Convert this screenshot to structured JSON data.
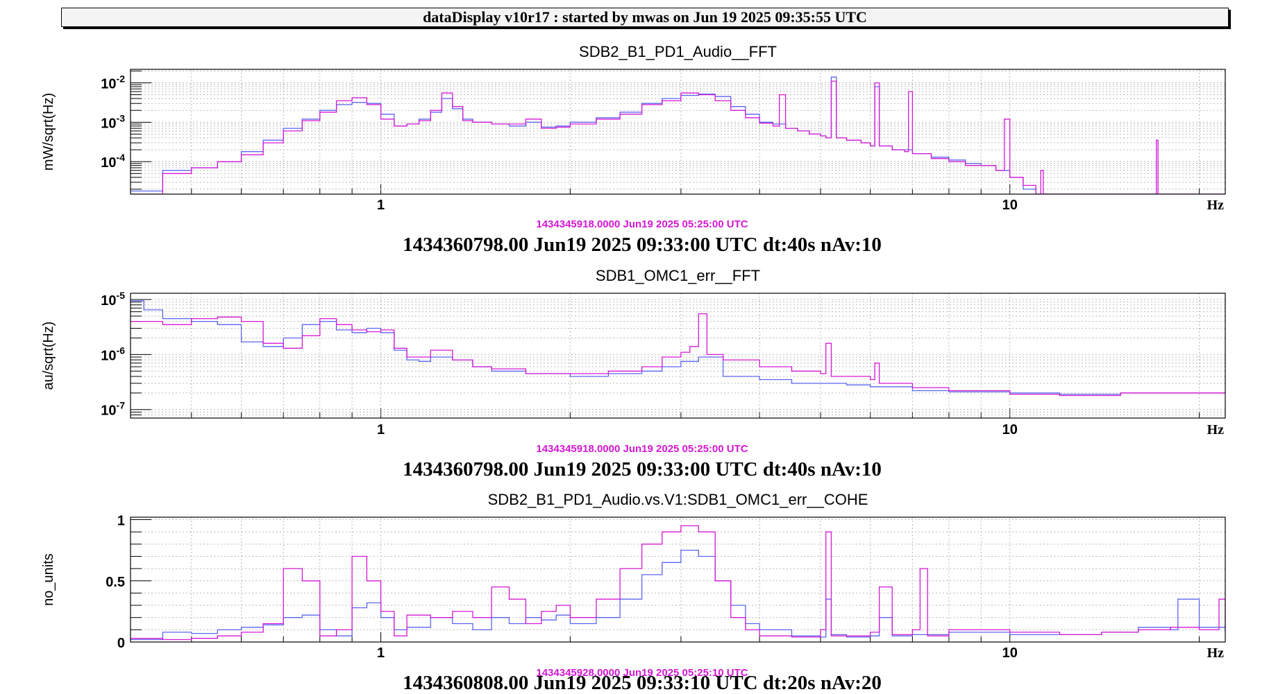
{
  "banner": "dataDisplay v10r17 : started by mwas on Jun 19 2025 09:35:55 UTC",
  "colors": {
    "series_ref": "#5a64ee",
    "series_live": "#d417d4",
    "magenta_text": "#d417d4",
    "grid": "#b8b8b8"
  },
  "chart_data": [
    {
      "type": "line",
      "title": "SDB2_B1_PD1_Audio__FFT",
      "ylabel": "mW/sqrt(Hz)",
      "xunit": "Hz",
      "xscale": "log",
      "yscale": "log",
      "grid": true,
      "xlim": [
        0.4,
        22
      ],
      "ylim": [
        1.5e-05,
        0.022
      ],
      "xticks": [
        {
          "v": 1,
          "label": "1"
        },
        {
          "v": 10,
          "label": "10"
        }
      ],
      "yticks": [
        {
          "v": 0.01,
          "base": "10",
          "exp": "-2"
        },
        {
          "v": 0.001,
          "base": "10",
          "exp": "-3"
        },
        {
          "v": 0.0001,
          "base": "10",
          "exp": "-4"
        }
      ],
      "ref_time": "1434345918.0000 Jun19 2025 05:25:00 UTC",
      "time_label": "1434360798.00 Jun19 2025 09:33:00 UTC dt:40s nAv:10",
      "series": [
        {
          "color": "#5a64ee",
          "x": [
            0.4,
            0.45,
            0.5,
            0.55,
            0.6,
            0.65,
            0.7,
            0.75,
            0.8,
            0.85,
            0.9,
            0.95,
            1.0,
            1.05,
            1.1,
            1.15,
            1.2,
            1.25,
            1.3,
            1.35,
            1.4,
            1.5,
            1.6,
            1.7,
            1.8,
            1.9,
            2.0,
            2.2,
            2.4,
            2.6,
            2.8,
            3.0,
            3.2,
            3.4,
            3.6,
            3.8,
            4.0,
            4.2,
            4.4,
            4.6,
            4.8,
            5.0,
            5.1,
            5.2,
            5.3,
            5.5,
            5.8,
            6.0,
            6.1,
            6.2,
            6.5,
            7.0,
            7.5,
            8.0,
            8.5,
            9.0,
            9.5,
            10.0,
            10.5,
            11.0,
            11.2,
            11.5,
            12.0,
            13,
            14,
            16,
            18,
            20,
            22
          ],
          "y": [
            1.8e-05,
            6e-05,
            7e-05,
            0.0001,
            0.00018,
            0.00035,
            0.0007,
            0.0012,
            0.002,
            0.0028,
            0.0032,
            0.003,
            0.0016,
            0.0008,
            0.0009,
            0.0012,
            0.0018,
            0.004,
            0.0022,
            0.0012,
            0.001,
            0.0009,
            0.0008,
            0.001,
            0.00075,
            0.0008,
            0.001,
            0.0013,
            0.0018,
            0.003,
            0.004,
            0.0048,
            0.0052,
            0.0045,
            0.0025,
            0.0016,
            0.001,
            0.0009,
            0.0007,
            0.0006,
            0.0005,
            0.00045,
            0.0004,
            0.014,
            0.0004,
            0.00035,
            0.0003,
            0.00025,
            0.008,
            0.00025,
            0.0002,
            0.00016,
            0.00013,
            0.00011,
            9e-05,
            8e-05,
            6e-05,
            4e-05,
            2e-05,
            1.5e-05,
            1.5e-05,
            1.5e-05,
            1.5e-05,
            1.5e-05,
            1.5e-05,
            1.5e-05,
            1.5e-05,
            1.5e-05,
            1.5e-05
          ]
        },
        {
          "color": "#d417d4",
          "x": [
            0.4,
            0.45,
            0.5,
            0.55,
            0.6,
            0.65,
            0.7,
            0.75,
            0.8,
            0.85,
            0.9,
            0.95,
            1.0,
            1.05,
            1.1,
            1.15,
            1.2,
            1.25,
            1.3,
            1.35,
            1.4,
            1.5,
            1.6,
            1.7,
            1.8,
            1.9,
            2.0,
            2.2,
            2.4,
            2.6,
            2.8,
            3.0,
            3.2,
            3.4,
            3.6,
            3.8,
            4.0,
            4.2,
            4.3,
            4.4,
            4.6,
            4.8,
            5.0,
            5.1,
            5.2,
            5.3,
            5.5,
            5.8,
            6.0,
            6.1,
            6.2,
            6.5,
            6.8,
            6.9,
            7.0,
            7.5,
            8.0,
            8.5,
            9.0,
            9.5,
            9.8,
            10.0,
            10.5,
            11.0,
            11.2,
            11.3,
            12.0,
            14,
            17,
            17.1,
            17.2,
            20,
            22
          ],
          "y": [
            1.5e-05,
            5e-05,
            7e-05,
            0.0001,
            0.00015,
            0.0003,
            0.0006,
            0.0011,
            0.0018,
            0.0035,
            0.0042,
            0.0028,
            0.0012,
            0.0008,
            0.0009,
            0.0011,
            0.002,
            0.0055,
            0.0025,
            0.0011,
            0.001,
            0.0009,
            0.0009,
            0.0012,
            0.0007,
            0.00075,
            0.0009,
            0.0012,
            0.0016,
            0.0028,
            0.0035,
            0.0055,
            0.005,
            0.0035,
            0.002,
            0.0013,
            0.00095,
            0.0008,
            0.005,
            0.0007,
            0.0006,
            0.0005,
            0.00045,
            0.0004,
            0.011,
            0.0004,
            0.00035,
            0.0003,
            0.00025,
            0.01,
            0.00025,
            0.0002,
            0.00018,
            0.006,
            0.00016,
            0.00012,
            0.0001,
            8e-05,
            8e-05,
            6e-05,
            0.0012,
            4e-05,
            2.5e-05,
            1.5e-05,
            6e-05,
            1.5e-05,
            1.5e-05,
            1.5e-05,
            1.5e-05,
            0.00035,
            1.5e-05,
            1.5e-05,
            1.5e-05
          ]
        }
      ]
    },
    {
      "type": "line",
      "title": "SDB1_OMC1_err__FFT",
      "ylabel": "au/sqrt(Hz)",
      "xunit": "Hz",
      "xscale": "log",
      "yscale": "log",
      "grid": true,
      "xlim": [
        0.4,
        22
      ],
      "ylim": [
        7e-08,
        1.3e-05
      ],
      "xticks": [
        {
          "v": 1,
          "label": "1"
        },
        {
          "v": 10,
          "label": "10"
        }
      ],
      "yticks": [
        {
          "v": 1e-05,
          "base": "10",
          "exp": "-5"
        },
        {
          "v": 1e-06,
          "base": "10",
          "exp": "-6"
        },
        {
          "v": 1e-07,
          "base": "10",
          "exp": "-7"
        }
      ],
      "ref_time": "1434345918.0000 Jun19 2025 05:25:00 UTC",
      "time_label": "1434360798.00 Jun19 2025 09:33:00 UTC dt:40s nAv:10",
      "series": [
        {
          "color": "#5a64ee",
          "x": [
            0.4,
            0.42,
            0.45,
            0.5,
            0.55,
            0.6,
            0.65,
            0.7,
            0.75,
            0.8,
            0.85,
            0.9,
            0.95,
            1.0,
            1.05,
            1.1,
            1.15,
            1.2,
            1.3,
            1.4,
            1.5,
            1.7,
            2.0,
            2.3,
            2.6,
            2.8,
            3.0,
            3.2,
            3.5,
            4.0,
            4.5,
            5.0,
            5.5,
            6.0,
            7.0,
            8.0,
            10,
            12,
            15,
            18,
            22
          ],
          "y": [
            9.5e-06,
            6.5e-06,
            4.5e-06,
            4e-06,
            3.5e-06,
            1.7e-06,
            1.4e-06,
            2e-06,
            3.5e-06,
            4e-06,
            2.8e-06,
            2.5e-06,
            3e-06,
            2.5e-06,
            1.2e-06,
            8e-07,
            7.5e-07,
            9e-07,
            8e-07,
            6e-07,
            5e-07,
            4.5e-07,
            4e-07,
            4.5e-07,
            5e-07,
            6e-07,
            7.5e-07,
            9e-07,
            4e-07,
            3.5e-07,
            3e-07,
            3e-07,
            2.8e-07,
            2.6e-07,
            2.2e-07,
            2.1e-07,
            2e-07,
            1.9e-07,
            2e-07,
            2e-07,
            2e-07
          ]
        },
        {
          "color": "#d417d4",
          "x": [
            0.4,
            0.45,
            0.5,
            0.55,
            0.6,
            0.65,
            0.7,
            0.75,
            0.8,
            0.85,
            0.9,
            0.95,
            1.0,
            1.05,
            1.1,
            1.2,
            1.3,
            1.4,
            1.5,
            1.7,
            2.0,
            2.3,
            2.6,
            2.8,
            3.0,
            3.1,
            3.2,
            3.3,
            3.5,
            4.0,
            4.5,
            5.0,
            5.1,
            5.2,
            5.5,
            6.0,
            6.1,
            6.2,
            7.0,
            8.0,
            10,
            12,
            15,
            18,
            22
          ],
          "y": [
            4e-06,
            3.5e-06,
            4.5e-06,
            4.8e-06,
            4e-06,
            1.6e-06,
            1.3e-06,
            2.2e-06,
            4.5e-06,
            3.5e-06,
            2.8e-06,
            2.6e-06,
            2.8e-06,
            1.3e-06,
            9e-07,
            1.2e-06,
            8e-07,
            6e-07,
            5.5e-07,
            4.5e-07,
            4.5e-07,
            5e-07,
            6e-07,
            9e-07,
            1.1e-06,
            1.4e-06,
            5.5e-06,
            1e-06,
            8e-07,
            6e-07,
            5e-07,
            4.5e-07,
            1.6e-06,
            4e-07,
            4e-07,
            3.5e-07,
            7e-07,
            3e-07,
            2.5e-07,
            2.2e-07,
            1.9e-07,
            1.8e-07,
            2e-07,
            2e-07,
            1.9e-07
          ]
        }
      ]
    },
    {
      "type": "line",
      "title": "SDB2_B1_PD1_Audio.vs.V1:SDB1_OMC1_err__COHE",
      "ylabel": "no_units",
      "xunit": "Hz",
      "xscale": "log",
      "yscale": "linear",
      "grid": true,
      "xlim": [
        0.4,
        22
      ],
      "ylim": [
        0,
        1.02
      ],
      "xticks": [
        {
          "v": 1,
          "label": "1"
        },
        {
          "v": 10,
          "label": "10"
        }
      ],
      "yticks": [
        {
          "v": 1,
          "label": "1"
        },
        {
          "v": 0.5,
          "label": "0.5"
        },
        {
          "v": 0,
          "label": "0"
        }
      ],
      "ref_time": "1434345928.0000 Jun19 2025 05:25:10 UTC",
      "time_label": "1434360808.00 Jun19 2025 09:33:10 UTC dt:20s nAv:20",
      "series": [
        {
          "color": "#5a64ee",
          "x": [
            0.4,
            0.45,
            0.5,
            0.55,
            0.6,
            0.65,
            0.7,
            0.75,
            0.8,
            0.85,
            0.9,
            0.95,
            1.0,
            1.05,
            1.1,
            1.2,
            1.3,
            1.4,
            1.5,
            1.6,
            1.7,
            1.8,
            1.9,
            2.0,
            2.2,
            2.4,
            2.6,
            2.8,
            3.0,
            3.2,
            3.4,
            3.6,
            3.8,
            4.0,
            4.5,
            5.0,
            5.1,
            5.2,
            5.5,
            6.0,
            6.2,
            6.5,
            7.0,
            8.0,
            10,
            12,
            14,
            16,
            18,
            18.5,
            20,
            22
          ],
          "y": [
            0.02,
            0.08,
            0.07,
            0.1,
            0.12,
            0.14,
            0.2,
            0.22,
            0.1,
            0.05,
            0.28,
            0.32,
            0.2,
            0.1,
            0.12,
            0.2,
            0.15,
            0.1,
            0.2,
            0.15,
            0.2,
            0.18,
            0.22,
            0.15,
            0.2,
            0.35,
            0.55,
            0.65,
            0.75,
            0.7,
            0.5,
            0.3,
            0.15,
            0.1,
            0.05,
            0.04,
            0.35,
            0.06,
            0.04,
            0.05,
            0.2,
            0.05,
            0.06,
            0.08,
            0.06,
            0.06,
            0.08,
            0.12,
            0.1,
            0.35,
            0.12,
            0.15
          ]
        },
        {
          "color": "#d417d4",
          "x": [
            0.4,
            0.45,
            0.5,
            0.55,
            0.6,
            0.65,
            0.7,
            0.75,
            0.8,
            0.85,
            0.9,
            0.95,
            1.0,
            1.05,
            1.1,
            1.2,
            1.3,
            1.4,
            1.5,
            1.6,
            1.7,
            1.8,
            1.9,
            2.0,
            2.2,
            2.4,
            2.6,
            2.8,
            3.0,
            3.2,
            3.4,
            3.6,
            3.8,
            4.0,
            4.5,
            5.0,
            5.1,
            5.2,
            5.5,
            6.0,
            6.2,
            6.5,
            7.0,
            7.2,
            7.4,
            8.0,
            10,
            12,
            14,
            16,
            18,
            20,
            21.5,
            22
          ],
          "y": [
            0.03,
            0.02,
            0.03,
            0.05,
            0.08,
            0.15,
            0.6,
            0.5,
            0.05,
            0.1,
            0.7,
            0.5,
            0.25,
            0.05,
            0.22,
            0.2,
            0.25,
            0.2,
            0.45,
            0.35,
            0.15,
            0.25,
            0.3,
            0.2,
            0.35,
            0.6,
            0.8,
            0.9,
            0.95,
            0.9,
            0.5,
            0.2,
            0.1,
            0.05,
            0.04,
            0.1,
            0.9,
            0.05,
            0.05,
            0.08,
            0.45,
            0.06,
            0.1,
            0.6,
            0.05,
            0.1,
            0.08,
            0.06,
            0.08,
            0.1,
            0.12,
            0.1,
            0.35,
            0.08
          ]
        }
      ]
    }
  ]
}
